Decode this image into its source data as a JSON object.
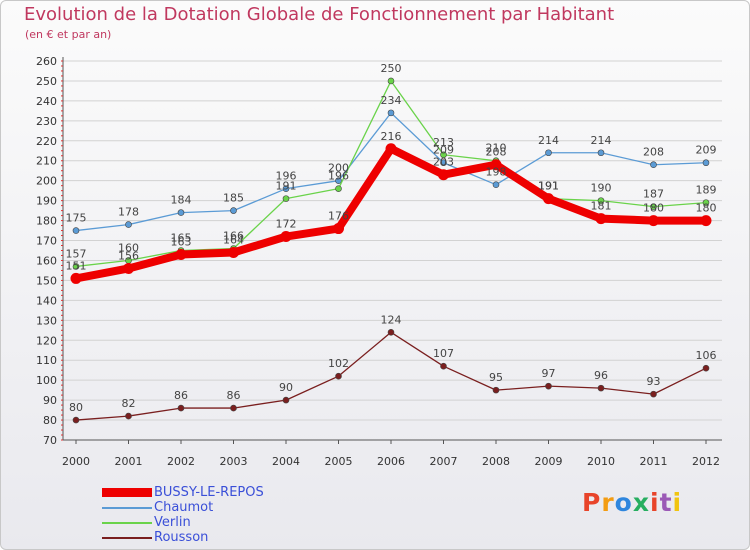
{
  "header": {
    "title": "Evolution de la Dotation Globale de Fonctionnement par Habitant",
    "subtitle": "(en € et par an)"
  },
  "logo": {
    "text": "Proxiti",
    "colors": [
      "#e8442a",
      "#f39c12",
      "#2e86de",
      "#27ae60",
      "#e8442a",
      "#9b59b6",
      "#f1c40f"
    ]
  },
  "chart_data": {
    "type": "line",
    "title": "Evolution de la Dotation Globale de Fonctionnement par Habitant",
    "subtitle": "(en € et par an)",
    "xlabel": "",
    "ylabel": "",
    "ylim": [
      70,
      260
    ],
    "y_ticks": [
      70,
      80,
      90,
      100,
      110,
      120,
      130,
      140,
      150,
      160,
      170,
      180,
      190,
      200,
      210,
      220,
      230,
      240,
      250,
      260
    ],
    "categories": [
      "2000",
      "2001",
      "2002",
      "2003",
      "2004",
      "2005",
      "2006",
      "2007",
      "2008",
      "2009",
      "2010",
      "2011",
      "2012"
    ],
    "legend_position": "bottom-left",
    "series": [
      {
        "name": "Chaumot",
        "color": "#5b9bd5",
        "values": [
          175,
          178,
          184,
          185,
          196,
          200,
          234,
          209,
          198,
          214,
          214,
          208,
          209
        ]
      },
      {
        "name": "Verlin",
        "color": "#6ad34a",
        "values": [
          157,
          160,
          165,
          166,
          191,
          196,
          250,
          213,
          210,
          191,
          190,
          187,
          189
        ]
      },
      {
        "name": "Rousson",
        "color": "#7a1f1f",
        "values": [
          80,
          82,
          86,
          86,
          90,
          102,
          124,
          107,
          95,
          97,
          96,
          93,
          106
        ]
      },
      {
        "name": "BUSSY-LE-REPOS",
        "color": "#ee0000",
        "values": [
          151,
          156,
          163,
          164,
          172,
          176,
          216,
          203,
          208,
          191,
          181,
          180,
          180
        ]
      }
    ],
    "label_texts": [
      [
        "175",
        "178",
        "184",
        "185",
        "196",
        "200",
        "234",
        "209",
        "198",
        "214",
        "214",
        "208",
        "209"
      ],
      [
        "157",
        "160",
        "165",
        "166",
        "191",
        "196",
        "250",
        "213",
        "210",
        "191",
        "190",
        "187",
        "189"
      ],
      [
        "80",
        "82",
        "86",
        "86",
        "90",
        "102",
        "124",
        "107",
        "95",
        "97",
        "96",
        "93",
        "106"
      ],
      [
        "151",
        "156",
        "163",
        "164",
        "172",
        "176",
        "216",
        "203",
        "208",
        "191",
        "181",
        "180",
        "180"
      ]
    ],
    "legend_order": [
      "BUSSY-LE-REPOS",
      "Chaumot",
      "Verlin",
      "Rousson"
    ]
  }
}
